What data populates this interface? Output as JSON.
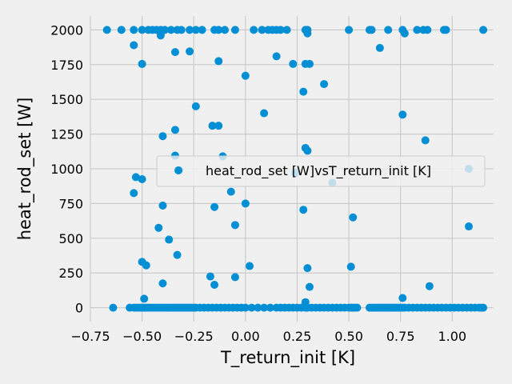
{
  "chart_data": {
    "type": "scatter",
    "title": "",
    "xlabel": "T_return_init [K]",
    "ylabel": "heat_rod_set [W]",
    "xlim": [
      -0.75,
      1.2
    ],
    "ylim": [
      -100,
      2100
    ],
    "xticks": [
      -0.75,
      -0.5,
      -0.25,
      0.0,
      0.25,
      0.5,
      0.75,
      1.0
    ],
    "xtick_labels": [
      "−0.75",
      "−0.50",
      "−0.25",
      "0.00",
      "0.25",
      "0.50",
      "0.75",
      "1.00"
    ],
    "yticks": [
      0,
      250,
      500,
      750,
      1000,
      1250,
      1500,
      1750,
      2000
    ],
    "ytick_labels": [
      "0",
      "250",
      "500",
      "750",
      "1000",
      "1250",
      "1500",
      "1750",
      "2000"
    ],
    "grid": true,
    "legend": {
      "entries": [
        "heat_rod_set [W]vsT_return_init [K]"
      ],
      "placement": "center-right"
    },
    "color": "#008fd5",
    "series": [
      {
        "name": "heat_rod_set [W]vsT_return_init [K]",
        "points": [
          [
            -0.67,
            2000
          ],
          [
            -0.6,
            2000
          ],
          [
            -0.54,
            2000
          ],
          [
            -0.5,
            2000
          ],
          [
            -0.47,
            2000
          ],
          [
            -0.45,
            2000
          ],
          [
            -0.43,
            2000
          ],
          [
            -0.41,
            2000
          ],
          [
            -0.39,
            2000
          ],
          [
            -0.36,
            2000
          ],
          [
            -0.33,
            2000
          ],
          [
            -0.31,
            2000
          ],
          [
            -0.27,
            2000
          ],
          [
            -0.24,
            2000
          ],
          [
            -0.21,
            2000
          ],
          [
            -0.15,
            2000
          ],
          [
            -0.13,
            2000
          ],
          [
            -0.1,
            2000
          ],
          [
            -0.05,
            2000
          ],
          [
            0.04,
            2000
          ],
          [
            0.08,
            2000
          ],
          [
            0.11,
            2000
          ],
          [
            0.13,
            2000
          ],
          [
            0.15,
            2000
          ],
          [
            0.17,
            2000
          ],
          [
            0.2,
            2000
          ],
          [
            0.29,
            2000
          ],
          [
            0.3,
            2000
          ],
          [
            0.5,
            2000
          ],
          [
            0.6,
            2000
          ],
          [
            0.61,
            2000
          ],
          [
            0.69,
            2000
          ],
          [
            0.76,
            2000
          ],
          [
            0.83,
            2000
          ],
          [
            0.86,
            2000
          ],
          [
            0.88,
            2000
          ],
          [
            0.96,
            2000
          ],
          [
            0.97,
            2000
          ],
          [
            1.15,
            2000
          ],
          [
            -0.41,
            1960
          ],
          [
            0.3,
            1975
          ],
          [
            0.77,
            1975
          ],
          [
            -0.54,
            1890
          ],
          [
            -0.34,
            1840
          ],
          [
            -0.27,
            1845
          ],
          [
            0.65,
            1870
          ],
          [
            -0.13,
            1775
          ],
          [
            0.15,
            1810
          ],
          [
            -0.5,
            1755
          ],
          [
            0.23,
            1755
          ],
          [
            0.29,
            1755
          ],
          [
            0.31,
            1755
          ],
          [
            0.0,
            1670
          ],
          [
            0.38,
            1610
          ],
          [
            0.28,
            1555
          ],
          [
            -0.24,
            1450
          ],
          [
            0.09,
            1400
          ],
          [
            0.76,
            1390
          ],
          [
            -0.16,
            1310
          ],
          [
            -0.13,
            1310
          ],
          [
            -0.34,
            1280
          ],
          [
            -0.4,
            1235
          ],
          [
            0.87,
            1205
          ],
          [
            0.29,
            1150
          ],
          [
            0.3,
            1130
          ],
          [
            -0.34,
            1095
          ],
          [
            -0.11,
            1090
          ],
          [
            -0.32,
            990
          ],
          [
            0.24,
            970
          ],
          [
            -0.53,
            940
          ],
          [
            -0.5,
            925
          ],
          [
            0.42,
            900
          ],
          [
            1.08,
            1000
          ],
          [
            -0.07,
            835
          ],
          [
            -0.54,
            825
          ],
          [
            0.0,
            750
          ],
          [
            -0.4,
            735
          ],
          [
            -0.15,
            725
          ],
          [
            0.28,
            705
          ],
          [
            0.52,
            650
          ],
          [
            -0.05,
            595
          ],
          [
            -0.42,
            575
          ],
          [
            1.08,
            585
          ],
          [
            -0.37,
            490
          ],
          [
            -0.33,
            380
          ],
          [
            -0.5,
            330
          ],
          [
            -0.48,
            305
          ],
          [
            0.02,
            300
          ],
          [
            0.51,
            295
          ],
          [
            0.3,
            285
          ],
          [
            -0.17,
            225
          ],
          [
            -0.05,
            220
          ],
          [
            -0.4,
            175
          ],
          [
            -0.15,
            165
          ],
          [
            0.31,
            150
          ],
          [
            0.89,
            155
          ],
          [
            -0.49,
            65
          ],
          [
            0.76,
            70
          ],
          [
            0.29,
            40
          ],
          [
            -0.64,
            0
          ],
          [
            -0.56,
            0
          ],
          [
            -0.54,
            0
          ],
          [
            -0.53,
            0
          ],
          [
            -0.52,
            0
          ],
          [
            -0.51,
            0
          ],
          [
            -0.5,
            0
          ],
          [
            -0.49,
            0
          ],
          [
            -0.48,
            0
          ],
          [
            -0.47,
            0
          ],
          [
            -0.46,
            0
          ],
          [
            -0.45,
            0
          ],
          [
            -0.44,
            0
          ],
          [
            -0.43,
            0
          ],
          [
            -0.42,
            0
          ],
          [
            -0.41,
            0
          ],
          [
            -0.4,
            0
          ],
          [
            -0.39,
            0
          ],
          [
            -0.38,
            0
          ],
          [
            -0.37,
            0
          ],
          [
            -0.36,
            0
          ],
          [
            -0.35,
            0
          ],
          [
            -0.34,
            0
          ],
          [
            -0.33,
            0
          ],
          [
            -0.32,
            0
          ],
          [
            -0.31,
            0
          ],
          [
            -0.3,
            0
          ],
          [
            -0.29,
            0
          ],
          [
            -0.28,
            0
          ],
          [
            -0.27,
            0
          ],
          [
            -0.26,
            0
          ],
          [
            -0.25,
            0
          ],
          [
            -0.24,
            0
          ],
          [
            -0.22,
            0
          ],
          [
            -0.2,
            0
          ],
          [
            -0.18,
            0
          ],
          [
            -0.16,
            0
          ],
          [
            -0.14,
            0
          ],
          [
            -0.12,
            0
          ],
          [
            -0.1,
            0
          ],
          [
            -0.08,
            0
          ],
          [
            -0.06,
            0
          ],
          [
            -0.04,
            0
          ],
          [
            -0.02,
            0
          ],
          [
            0.0,
            0
          ],
          [
            0.03,
            0
          ],
          [
            0.06,
            0
          ],
          [
            0.09,
            0
          ],
          [
            0.12,
            0
          ],
          [
            0.15,
            0
          ],
          [
            0.17,
            0
          ],
          [
            0.19,
            0
          ],
          [
            0.21,
            0
          ],
          [
            0.23,
            0
          ],
          [
            0.25,
            0
          ],
          [
            0.27,
            0
          ],
          [
            0.29,
            0
          ],
          [
            0.3,
            0
          ],
          [
            0.32,
            0
          ],
          [
            0.34,
            0
          ],
          [
            0.36,
            0
          ],
          [
            0.38,
            0
          ],
          [
            0.4,
            0
          ],
          [
            0.42,
            0
          ],
          [
            0.44,
            0
          ],
          [
            0.46,
            0
          ],
          [
            0.48,
            0
          ],
          [
            0.5,
            0
          ],
          [
            0.51,
            0
          ],
          [
            0.52,
            0
          ],
          [
            0.53,
            0
          ],
          [
            0.54,
            0
          ],
          [
            0.6,
            0
          ],
          [
            0.61,
            0
          ],
          [
            0.62,
            0
          ],
          [
            0.63,
            0
          ],
          [
            0.64,
            0
          ],
          [
            0.65,
            0
          ],
          [
            0.66,
            0
          ],
          [
            0.67,
            0
          ],
          [
            0.68,
            0
          ],
          [
            0.69,
            0
          ],
          [
            0.7,
            0
          ],
          [
            0.71,
            0
          ],
          [
            0.72,
            0
          ],
          [
            0.73,
            0
          ],
          [
            0.74,
            0
          ],
          [
            0.75,
            0
          ],
          [
            0.76,
            0
          ],
          [
            0.77,
            0
          ],
          [
            0.79,
            0
          ],
          [
            0.81,
            0
          ],
          [
            0.83,
            0
          ],
          [
            0.85,
            0
          ],
          [
            0.87,
            0
          ],
          [
            0.89,
            0
          ],
          [
            0.91,
            0
          ],
          [
            0.93,
            0
          ],
          [
            0.95,
            0
          ],
          [
            0.97,
            0
          ],
          [
            0.99,
            0
          ],
          [
            1.01,
            0
          ],
          [
            1.03,
            0
          ],
          [
            1.05,
            0
          ],
          [
            1.07,
            0
          ],
          [
            1.09,
            0
          ],
          [
            1.11,
            0
          ],
          [
            1.13,
            0
          ],
          [
            1.14,
            0
          ],
          [
            1.15,
            0
          ]
        ]
      }
    ]
  }
}
